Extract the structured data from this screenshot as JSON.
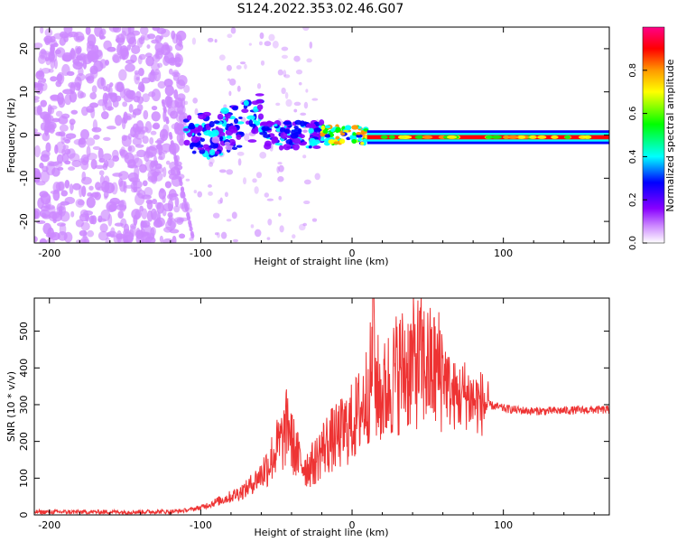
{
  "title": "S124.2022.353.02.46.G07",
  "colors": {
    "snr_line": "#ee3333",
    "axis": "#000000",
    "background": "#ffffff"
  },
  "chart_data": [
    {
      "type": "heatmap",
      "xlabel": "Height of straight line (km)",
      "ylabel": "Frequency (Hz)",
      "xlim": [
        -210,
        170
      ],
      "ylim": [
        -25,
        25
      ],
      "xticks": [
        -200,
        -100,
        0,
        100
      ],
      "yticks": [
        -20,
        -10,
        0,
        10,
        20
      ],
      "colorbar": {
        "label": "Normalized spectral amplitude",
        "range": [
          0,
          1
        ],
        "ticks": [
          "0.0",
          "0.2",
          "0.4",
          "0.6",
          "0.8"
        ],
        "tick_values": [
          0,
          0.2,
          0.4,
          0.6,
          0.8
        ],
        "colors": [
          "#ffffff",
          "#cc88ff",
          "#8800ff",
          "#0000ff",
          "#00ffff",
          "#00ff00",
          "#ffff00",
          "#ff9900",
          "#ff0000",
          "#ff0088"
        ]
      },
      "features": [
        {
          "region": "noise",
          "x_range": [
            -210,
            -110
          ],
          "y_range": [
            -25,
            25
          ],
          "amplitude": 0.1
        },
        {
          "region": "signal_scattered",
          "x_range": [
            -110,
            -20
          ],
          "y_center_start": 0,
          "y_center_end": 0,
          "amplitude": 0.3
        },
        {
          "region": "signal_line",
          "x_range": [
            -20,
            170
          ],
          "y_center": -0.5,
          "amplitude": 0.85
        }
      ]
    },
    {
      "type": "line",
      "xlabel": "Height of straight line (km)",
      "ylabel": "SNR (10 * v/v)",
      "xlim": [
        -210,
        170
      ],
      "ylim": [
        0,
        590
      ],
      "xticks": [
        -200,
        -100,
        0,
        100
      ],
      "yticks": [
        0,
        100,
        200,
        300,
        400,
        500
      ],
      "series": [
        {
          "x": [
            -210,
            -180,
            -150,
            -120,
            -110,
            -100,
            -90,
            -80,
            -75,
            -70,
            -65,
            -60,
            -55,
            -50,
            -45,
            -42,
            -40,
            -35,
            -30,
            -25,
            -20,
            -15,
            -10,
            -5,
            0,
            5,
            10,
            13,
            15,
            20,
            25,
            30,
            35,
            40,
            45,
            50,
            55,
            60,
            65,
            70,
            75,
            80,
            90,
            100,
            110,
            120,
            130,
            140,
            150,
            160,
            170
          ],
          "y": [
            8,
            8,
            8,
            9,
            12,
            20,
            35,
            50,
            60,
            70,
            90,
            110,
            140,
            180,
            210,
            260,
            200,
            150,
            130,
            140,
            180,
            200,
            210,
            230,
            250,
            280,
            330,
            380,
            360,
            320,
            360,
            390,
            400,
            410,
            420,
            400,
            390,
            400,
            330,
            320,
            330,
            310,
            300,
            290,
            285,
            282,
            283,
            284,
            285,
            286,
            286
          ]
        }
      ]
    }
  ]
}
